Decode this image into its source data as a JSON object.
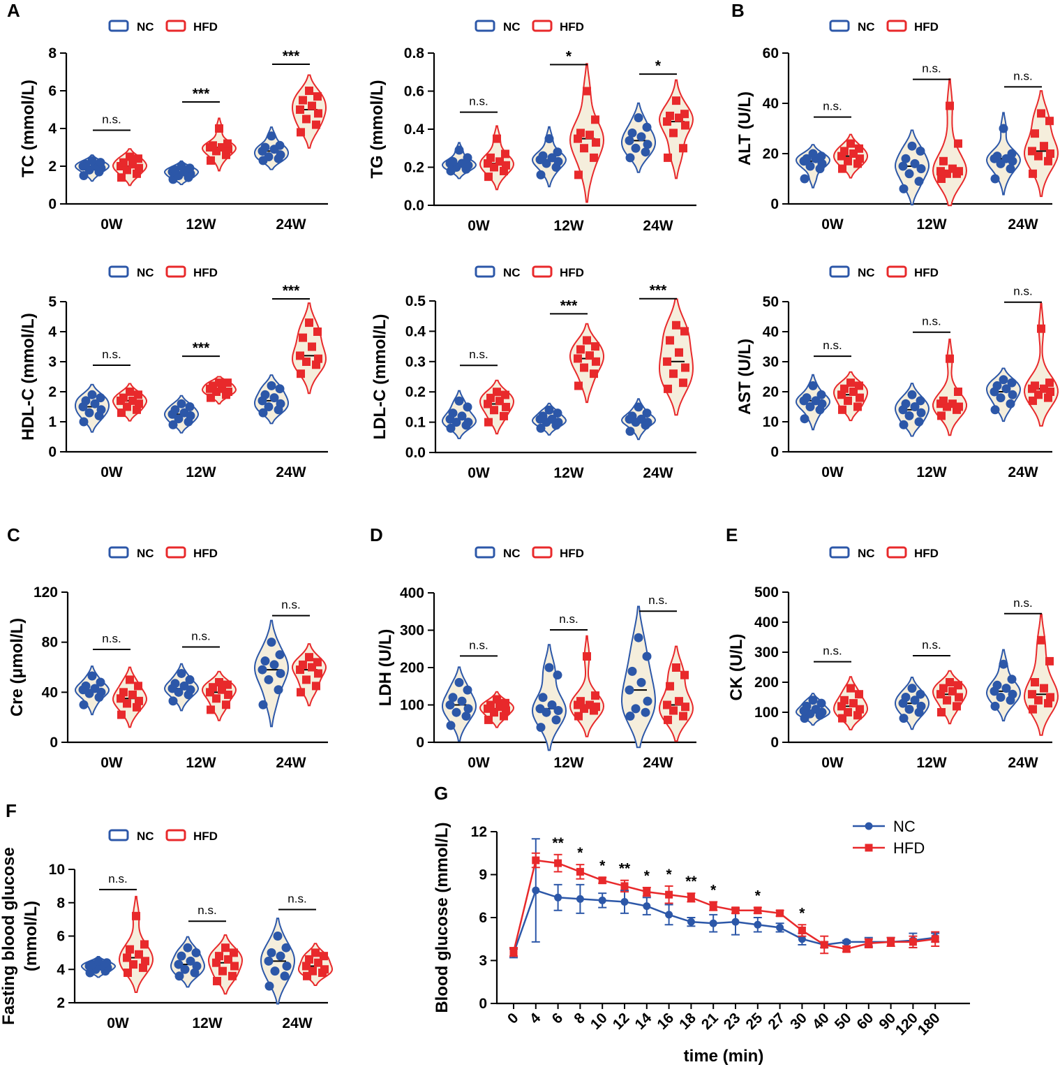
{
  "colors": {
    "nc": "#2c57a8",
    "hfd": "#e8292b",
    "fill": "#f5eedc"
  },
  "legend": {
    "nc": "NC",
    "hfd": "HFD"
  },
  "groups": [
    "0W",
    "12W",
    "24W"
  ],
  "chart_data": [
    {
      "id": "TC",
      "panel": "A",
      "type": "violin",
      "ylabel": "TC (mmol/L)",
      "ylim": [
        0,
        8
      ],
      "yticks": [
        0,
        2,
        4,
        6,
        8
      ],
      "nc": [
        [
          1.5,
          1.7,
          1.8,
          1.9,
          2.0,
          2.0,
          2.1,
          2.2,
          2.3
        ],
        [
          1.3,
          1.4,
          1.5,
          1.6,
          1.7,
          1.7,
          1.8,
          1.9,
          2.0
        ],
        [
          2.3,
          2.4,
          2.5,
          2.6,
          2.8,
          2.9,
          3.0,
          3.1,
          3.6
        ]
      ],
      "hfd": [
        [
          1.4,
          1.6,
          1.8,
          1.9,
          2.0,
          2.1,
          2.2,
          2.4,
          2.5
        ],
        [
          2.3,
          2.6,
          2.8,
          2.9,
          3.0,
          3.0,
          3.1,
          3.2,
          4.0
        ],
        [
          3.8,
          4.2,
          4.5,
          4.8,
          5.0,
          5.2,
          5.5,
          5.7,
          6.0
        ]
      ],
      "sig": [
        "n.s.",
        "***",
        "***"
      ]
    },
    {
      "id": "TG",
      "panel": "",
      "type": "violin",
      "ylabel": "TG (mmol/L)",
      "ylim": [
        0,
        0.8
      ],
      "yticks": [
        "0.0",
        "0.2",
        "0.4",
        "0.6",
        "0.8"
      ],
      "nc": [
        [
          0.18,
          0.19,
          0.2,
          0.21,
          0.22,
          0.22,
          0.23,
          0.25,
          0.29
        ],
        [
          0.16,
          0.2,
          0.22,
          0.23,
          0.24,
          0.25,
          0.26,
          0.28,
          0.35
        ],
        [
          0.25,
          0.28,
          0.3,
          0.32,
          0.34,
          0.36,
          0.38,
          0.41,
          0.46
        ]
      ],
      "hfd": [
        [
          0.15,
          0.18,
          0.2,
          0.21,
          0.22,
          0.23,
          0.25,
          0.27,
          0.35
        ],
        [
          0.16,
          0.25,
          0.3,
          0.33,
          0.35,
          0.37,
          0.38,
          0.45,
          0.6
        ],
        [
          0.25,
          0.3,
          0.38,
          0.42,
          0.44,
          0.46,
          0.47,
          0.48,
          0.55
        ]
      ],
      "sig": [
        "n.s.",
        "*",
        "*"
      ]
    },
    {
      "id": "ALT",
      "panel": "B",
      "type": "violin",
      "ylabel": "ALT (U/L)",
      "ylim": [
        0,
        60
      ],
      "yticks": [
        0,
        20,
        40,
        60
      ],
      "nc": [
        [
          10,
          14,
          15,
          16,
          17,
          18,
          18,
          19,
          20
        ],
        [
          6,
          9,
          12,
          14,
          15,
          16,
          18,
          21,
          23
        ],
        [
          10,
          14,
          16,
          17,
          18,
          18,
          19,
          20,
          30
        ]
      ],
      "hfd": [
        [
          14,
          16,
          17,
          18,
          19,
          20,
          21,
          22,
          24
        ],
        [
          10,
          12,
          12,
          13,
          13,
          14,
          17,
          24,
          39
        ],
        [
          12,
          17,
          19,
          20,
          21,
          23,
          28,
          33,
          36
        ]
      ],
      "sig": [
        "n.s.",
        "n.s.",
        "n.s."
      ]
    },
    {
      "id": "HDL",
      "panel": "",
      "type": "violin",
      "ylabel": "HDL-C (mmol/L)",
      "ylim": [
        0,
        5
      ],
      "yticks": [
        0,
        1,
        2,
        3,
        4,
        5
      ],
      "nc": [
        [
          1.0,
          1.2,
          1.3,
          1.4,
          1.5,
          1.6,
          1.7,
          1.8,
          1.9
        ],
        [
          0.9,
          1.0,
          1.1,
          1.2,
          1.25,
          1.3,
          1.4,
          1.5,
          1.6
        ],
        [
          1.3,
          1.4,
          1.5,
          1.6,
          1.7,
          1.8,
          1.9,
          2.1,
          2.2
        ]
      ],
      "hfd": [
        [
          1.3,
          1.4,
          1.5,
          1.6,
          1.7,
          1.7,
          1.8,
          1.9,
          2.0
        ],
        [
          1.8,
          1.9,
          2.0,
          2.0,
          2.1,
          2.1,
          2.2,
          2.3,
          2.3
        ],
        [
          2.6,
          2.9,
          3.0,
          3.1,
          3.2,
          3.5,
          3.8,
          4.0,
          4.3
        ]
      ],
      "sig": [
        "n.s.",
        "***",
        "***"
      ]
    },
    {
      "id": "LDL",
      "panel": "",
      "type": "violin",
      "ylabel": "LDL-C (mmol/L)",
      "ylim": [
        0,
        0.5
      ],
      "yticks": [
        "0.0",
        "0.1",
        "0.2",
        "0.3",
        "0.4",
        "0.5"
      ],
      "nc": [
        [
          0.08,
          0.09,
          0.1,
          0.1,
          0.11,
          0.12,
          0.13,
          0.15,
          0.17
        ],
        [
          0.08,
          0.09,
          0.1,
          0.1,
          0.11,
          0.11,
          0.12,
          0.13,
          0.14
        ],
        [
          0.07,
          0.09,
          0.1,
          0.1,
          0.11,
          0.11,
          0.12,
          0.13,
          0.15
        ]
      ],
      "hfd": [
        [
          0.1,
          0.12,
          0.14,
          0.15,
          0.16,
          0.17,
          0.18,
          0.19,
          0.2
        ],
        [
          0.22,
          0.26,
          0.28,
          0.3,
          0.31,
          0.32,
          0.34,
          0.35,
          0.37
        ],
        [
          0.21,
          0.23,
          0.26,
          0.28,
          0.3,
          0.33,
          0.37,
          0.4,
          0.42
        ]
      ],
      "sig": [
        "n.s.",
        "***",
        "***"
      ]
    },
    {
      "id": "AST",
      "panel": "",
      "type": "violin",
      "ylabel": "AST (U/L)",
      "ylim": [
        0,
        50
      ],
      "yticks": [
        0,
        10,
        20,
        30,
        40,
        50
      ],
      "nc": [
        [
          11,
          14,
          15,
          16,
          17,
          17,
          18,
          19,
          22
        ],
        [
          9,
          10,
          12,
          13,
          14,
          15,
          16,
          17,
          19
        ],
        [
          14,
          16,
          18,
          19,
          20,
          21,
          22,
          23,
          24
        ]
      ],
      "hfd": [
        [
          14,
          15,
          17,
          18,
          19,
          20,
          21,
          22,
          23
        ],
        [
          12,
          14,
          15,
          15,
          16,
          16,
          17,
          20,
          31
        ],
        [
          17,
          18,
          19,
          20,
          21,
          21,
          22,
          23,
          41
        ]
      ],
      "sig": [
        "n.s.",
        "n.s.",
        "n.s."
      ]
    },
    {
      "id": "Cre",
      "panel": "C",
      "type": "violin",
      "ylabel": "Cre (μmol/L)",
      "ylim": [
        0,
        120
      ],
      "yticks": [
        0,
        40,
        80,
        120
      ],
      "nc": [
        [
          30,
          36,
          39,
          40,
          42,
          43,
          45,
          48,
          53
        ],
        [
          33,
          38,
          40,
          42,
          43,
          45,
          47,
          50,
          55
        ],
        [
          30,
          42,
          50,
          55,
          58,
          62,
          65,
          70,
          80
        ]
      ],
      "hfd": [
        [
          22,
          28,
          31,
          33,
          35,
          38,
          40,
          45,
          50
        ],
        [
          26,
          30,
          35,
          38,
          40,
          42,
          44,
          46,
          48
        ],
        [
          40,
          45,
          50,
          55,
          58,
          60,
          62,
          64,
          68
        ]
      ],
      "sig": [
        "n.s.",
        "n.s.",
        "n.s."
      ]
    },
    {
      "id": "LDH",
      "panel": "D",
      "type": "violin",
      "ylabel": "LDH (U/L)",
      "ylim": [
        0,
        400
      ],
      "yticks": [
        0,
        100,
        200,
        300,
        400
      ],
      "nc": [
        [
          45,
          70,
          80,
          90,
          100,
          110,
          120,
          140,
          160
        ],
        [
          40,
          60,
          80,
          85,
          90,
          100,
          120,
          180,
          200
        ],
        [
          70,
          80,
          90,
          110,
          140,
          160,
          190,
          230,
          280
        ]
      ],
      "hfd": [
        [
          60,
          70,
          80,
          85,
          90,
          95,
          100,
          105,
          115
        ],
        [
          70,
          85,
          90,
          95,
          100,
          100,
          110,
          125,
          230
        ],
        [
          60,
          70,
          85,
          95,
          100,
          110,
          150,
          180,
          200
        ]
      ],
      "sig": [
        "n.s.",
        "n.s.",
        "n.s."
      ]
    },
    {
      "id": "CK",
      "panel": "E",
      "type": "violin",
      "ylabel": "CK (U/L)",
      "ylim": [
        0,
        500
      ],
      "yticks": [
        0,
        100,
        200,
        300,
        400,
        500
      ],
      "nc": [
        [
          80,
          90,
          95,
          100,
          105,
          110,
          120,
          130,
          140
        ],
        [
          80,
          100,
          110,
          120,
          130,
          140,
          150,
          160,
          180
        ],
        [
          120,
          140,
          150,
          160,
          170,
          180,
          190,
          210,
          260
        ]
      ],
      "hfd": [
        [
          80,
          90,
          100,
          110,
          120,
          130,
          140,
          160,
          180
        ],
        [
          100,
          120,
          140,
          150,
          160,
          170,
          180,
          190,
          200
        ],
        [
          110,
          130,
          140,
          150,
          160,
          180,
          200,
          270,
          340
        ]
      ],
      "sig": [
        "n.s.",
        "n.s.",
        "n.s."
      ]
    },
    {
      "id": "FBG",
      "panel": "F",
      "type": "violin",
      "ylabel": "Fasting blood glucose",
      "ylabel2": "(mmol/L)",
      "ylim": [
        2,
        10
      ],
      "yticks": [
        2,
        4,
        6,
        8,
        10
      ],
      "nc": [
        [
          3.8,
          3.9,
          4.0,
          4.1,
          4.2,
          4.2,
          4.3,
          4.4,
          4.5
        ],
        [
          3.6,
          3.8,
          4.0,
          4.2,
          4.3,
          4.5,
          4.8,
          5.0,
          5.3
        ],
        [
          3.0,
          3.6,
          3.9,
          4.2,
          4.5,
          4.8,
          5.0,
          5.3,
          6.0
        ]
      ],
      "hfd": [
        [
          3.8,
          4.1,
          4.3,
          4.5,
          4.7,
          4.9,
          5.2,
          5.5,
          7.2
        ],
        [
          3.3,
          3.6,
          3.9,
          4.2,
          4.4,
          4.6,
          4.8,
          5.0,
          5.3
        ],
        [
          3.6,
          3.8,
          3.9,
          4.0,
          4.2,
          4.4,
          4.6,
          4.8,
          5.0
        ]
      ],
      "sig": [
        "n.s.",
        "n.s.",
        "n.s."
      ]
    },
    {
      "id": "IPGTT",
      "panel": "G",
      "type": "line",
      "xlabel": "time (min)",
      "ylabel": "Blood glucose (mmol/L)",
      "ylim": [
        0,
        12
      ],
      "yticks": [
        0,
        3,
        6,
        9,
        12
      ],
      "categories": [
        "0",
        "4",
        "6",
        "8",
        "10",
        "12",
        "14",
        "16",
        "18",
        "21",
        "23",
        "25",
        "27",
        "30",
        "40",
        "50",
        "60",
        "90",
        "120",
        "180"
      ],
      "series": [
        {
          "name": "NC",
          "values": [
            3.5,
            7.9,
            7.4,
            7.3,
            7.2,
            7.1,
            6.8,
            6.2,
            5.7,
            5.6,
            5.7,
            5.5,
            5.3,
            4.5,
            4.1,
            4.3,
            4.3,
            4.3,
            4.4,
            4.6
          ],
          "errors": [
            0.3,
            3.6,
            0.9,
            1.0,
            0.5,
            0.8,
            0.6,
            0.7,
            0.3,
            0.6,
            0.9,
            0.5,
            0.3,
            0.4,
            0.2,
            0.1,
            0.3,
            0.3,
            0.5,
            0.3
          ]
        },
        {
          "name": "HFD",
          "values": [
            3.6,
            10.0,
            9.8,
            9.2,
            8.6,
            8.2,
            7.8,
            7.6,
            7.4,
            6.8,
            6.5,
            6.5,
            6.3,
            5.1,
            4.1,
            3.8,
            4.2,
            4.3,
            4.3,
            4.5
          ],
          "errors": [
            0.3,
            0.5,
            0.6,
            0.5,
            0.2,
            0.4,
            0.3,
            0.6,
            0.3,
            0.3,
            0.2,
            0.2,
            0.2,
            0.4,
            0.6,
            0.2,
            0.3,
            0.3,
            0.4,
            0.5
          ]
        }
      ],
      "sig": [
        "",
        "",
        "**",
        "*",
        "*",
        "**",
        "*",
        "*",
        "**",
        "*",
        "",
        "*",
        "",
        "*",
        "",
        "",
        "",
        "",
        "",
        ""
      ]
    }
  ]
}
